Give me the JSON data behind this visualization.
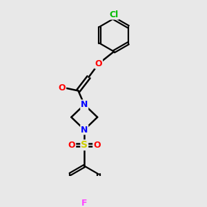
{
  "background_color": "#e8e8e8",
  "bond_color": "#000000",
  "atom_colors": {
    "O": "#ff0000",
    "N": "#0000ff",
    "S": "#cccc00",
    "Cl": "#00bb00",
    "F": "#ff44ff",
    "C": "#000000"
  },
  "figsize": [
    3.0,
    3.0
  ],
  "dpi": 100
}
